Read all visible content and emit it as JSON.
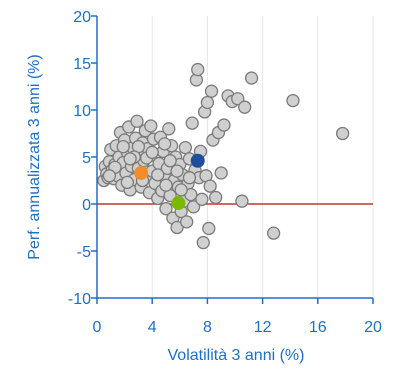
{
  "chart_data": {
    "type": "scatter",
    "title": "",
    "xlabel": "Volatilità 3 anni (%)",
    "ylabel": "Perf. annualizzata 3 anni (%)",
    "xlim": [
      0,
      20
    ],
    "ylim": [
      -10,
      20
    ],
    "x_ticks": [
      "0",
      "4",
      "8",
      "12",
      "16",
      "20"
    ],
    "x_tick_values": [
      0,
      4,
      8,
      12,
      16,
      20
    ],
    "y_ticks": [
      "20",
      "15",
      "10",
      "5",
      "0",
      "-5",
      "-10"
    ],
    "y_tick_values": [
      20,
      15,
      10,
      5,
      0,
      -5,
      -10
    ],
    "grid": "vertical",
    "zero_line": 0,
    "colors": {
      "axis": "#1f6fc5",
      "grid": "#e6e6e6",
      "zero_line": "#c0392b",
      "point_fill": "#d0d0d0",
      "point_stroke": "#7a7a7a",
      "highlight_blue": "#1f4e9a",
      "highlight_orange": "#f28c28",
      "highlight_green": "#7ab800"
    },
    "series": [
      {
        "role": "peers",
        "points": [
          [
            0.5,
            2.5
          ],
          [
            0.6,
            4.0
          ],
          [
            0.7,
            3.2
          ],
          [
            0.8,
            2.8
          ],
          [
            0.9,
            4.5
          ],
          [
            1.0,
            5.8
          ],
          [
            1.1,
            3.6
          ],
          [
            1.2,
            2.7
          ],
          [
            1.3,
            4.2
          ],
          [
            1.4,
            6.2
          ],
          [
            1.5,
            3.0
          ],
          [
            1.6,
            5.0
          ],
          [
            1.7,
            7.6
          ],
          [
            1.8,
            2.0
          ],
          [
            1.9,
            4.4
          ],
          [
            2.0,
            6.8
          ],
          [
            2.1,
            3.3
          ],
          [
            2.2,
            5.5
          ],
          [
            2.3,
            8.2
          ],
          [
            2.4,
            1.5
          ],
          [
            2.5,
            4.0
          ],
          [
            2.6,
            6.0
          ],
          [
            2.7,
            2.6
          ],
          [
            2.8,
            7.0
          ],
          [
            2.9,
            8.8
          ],
          [
            3.0,
            3.8
          ],
          [
            3.1,
            5.2
          ],
          [
            3.2,
            1.8
          ],
          [
            3.3,
            6.5
          ],
          [
            3.4,
            4.6
          ],
          [
            3.5,
            7.8
          ],
          [
            3.6,
            2.9
          ],
          [
            3.7,
            5.9
          ],
          [
            3.8,
            1.2
          ],
          [
            3.9,
            8.3
          ],
          [
            4.0,
            3.5
          ],
          [
            4.1,
            6.9
          ],
          [
            4.2,
            2.2
          ],
          [
            4.3,
            5.1
          ],
          [
            4.4,
            0.6
          ],
          [
            4.5,
            4.3
          ],
          [
            4.6,
            7.1
          ],
          [
            4.7,
            1.4
          ],
          [
            4.8,
            5.6
          ],
          [
            4.9,
            2.9
          ],
          [
            5.0,
            -0.5
          ],
          [
            5.1,
            3.8
          ],
          [
            5.2,
            8.0
          ],
          [
            5.3,
            0.9
          ],
          [
            5.4,
            6.2
          ],
          [
            5.5,
            -1.5
          ],
          [
            5.6,
            2.5
          ],
          [
            5.7,
            5.0
          ],
          [
            5.8,
            -2.5
          ],
          [
            5.9,
            1.8
          ],
          [
            6.0,
            4.2
          ],
          [
            6.1,
            -0.8
          ],
          [
            6.2,
            3.1
          ],
          [
            6.3,
            0.3
          ],
          [
            6.4,
            6.0
          ],
          [
            6.5,
            -1.9
          ],
          [
            6.6,
            2.2
          ],
          [
            6.7,
            4.8
          ],
          [
            6.8,
            1.0
          ],
          [
            6.9,
            8.6
          ],
          [
            7.0,
            -0.3
          ],
          [
            7.1,
            3.6
          ],
          [
            7.2,
            13.2
          ],
          [
            7.3,
            14.3
          ],
          [
            7.4,
            2.8
          ],
          [
            7.5,
            5.6
          ],
          [
            7.6,
            0.5
          ],
          [
            7.7,
            -4.1
          ],
          [
            7.8,
            9.8
          ],
          [
            7.9,
            3.0
          ],
          [
            8.0,
            10.8
          ],
          [
            8.1,
            -2.6
          ],
          [
            8.2,
            1.9
          ],
          [
            8.3,
            12.0
          ],
          [
            8.4,
            6.8
          ],
          [
            8.6,
            0.7
          ],
          [
            8.8,
            7.6
          ],
          [
            9.0,
            3.3
          ],
          [
            9.2,
            8.4
          ],
          [
            9.5,
            11.5
          ],
          [
            9.8,
            10.9
          ],
          [
            10.2,
            11.2
          ],
          [
            10.5,
            0.3
          ],
          [
            10.7,
            10.3
          ],
          [
            11.2,
            13.4
          ],
          [
            12.8,
            -3.1
          ],
          [
            14.2,
            11.0
          ],
          [
            17.8,
            7.5
          ],
          [
            1.3,
            3.9
          ],
          [
            2.2,
            2.3
          ],
          [
            3.0,
            6.1
          ],
          [
            3.6,
            4.9
          ],
          [
            4.4,
            3.1
          ],
          [
            5.3,
            4.6
          ],
          [
            6.1,
            1.5
          ],
          [
            6.7,
            2.8
          ],
          [
            2.7,
            5.0
          ],
          [
            1.9,
            6.1
          ],
          [
            4.9,
            6.4
          ],
          [
            5.8,
            3.5
          ],
          [
            0.9,
            3.0
          ],
          [
            2.4,
            4.8
          ],
          [
            3.3,
            2.5
          ],
          [
            4.0,
            5.5
          ],
          [
            5.0,
            2.0
          ]
        ]
      },
      {
        "role": "highlight",
        "name": "",
        "color": "#1f4e9a",
        "points": [
          [
            7.3,
            4.6
          ]
        ]
      },
      {
        "role": "highlight",
        "name": "",
        "color": "#f28c28",
        "points": [
          [
            3.2,
            3.3
          ]
        ]
      },
      {
        "role": "highlight",
        "name": "",
        "color": "#7ab800",
        "points": [
          [
            5.9,
            0.1
          ]
        ]
      }
    ]
  }
}
